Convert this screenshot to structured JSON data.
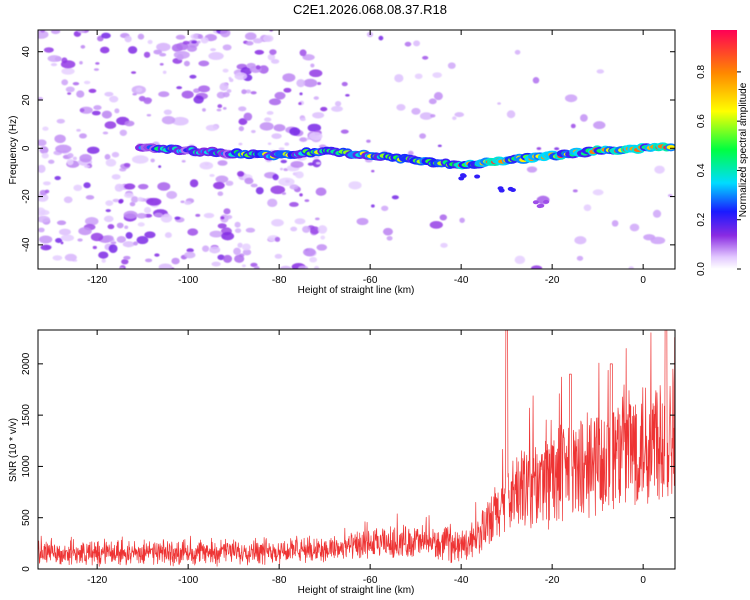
{
  "title": "C2E1.2026.068.08.37.R18",
  "chart_data": [
    {
      "type": "heatmap",
      "xlabel": "Height of straight line (km)",
      "ylabel": "Frequency (Hz)",
      "xlim": [
        -133,
        7
      ],
      "ylim": [
        -50,
        49
      ],
      "xticks": [
        -120,
        -100,
        -80,
        -60,
        -40,
        -20,
        0
      ],
      "yticks": [
        -40,
        -20,
        0,
        20,
        40
      ],
      "colorbar": {
        "label": "Normalized spectral amplitude",
        "range": [
          0,
          0.97
        ],
        "ticks": [
          0,
          0.2,
          0.4,
          0.6,
          0.8
        ]
      },
      "main_trace": [
        {
          "x": -110,
          "y": 0
        },
        {
          "x": -100,
          "y": -1
        },
        {
          "x": -90,
          "y": -2
        },
        {
          "x": -80,
          "y": -3
        },
        {
          "x": -70,
          "y": -1
        },
        {
          "x": -60,
          "y": -3
        },
        {
          "x": -50,
          "y": -5
        },
        {
          "x": -40,
          "y": -7
        },
        {
          "x": -30,
          "y": -5
        },
        {
          "x": -20,
          "y": -3
        },
        {
          "x": -10,
          "y": -1
        },
        {
          "x": 0,
          "y": 0
        },
        {
          "x": 7,
          "y": 1
        }
      ],
      "secondary_trace": [
        {
          "x": -38,
          "y": -12
        },
        {
          "x": -30,
          "y": -17
        },
        {
          "x": -22,
          "y": -23
        }
      ]
    },
    {
      "type": "line",
      "xlabel": "Height of straight line (km)",
      "ylabel": "SNR (10 * v/v)",
      "xlim": [
        -133,
        7
      ],
      "ylim": [
        0,
        2330
      ],
      "xticks": [
        -120,
        -100,
        -80,
        -60,
        -40,
        -20,
        0
      ],
      "yticks": [
        0,
        500,
        1000,
        1500,
        2000
      ],
      "series": [
        {
          "name": "SNR",
          "color": "#ee3333",
          "envelope": [
            {
              "x": -133,
              "y": 170
            },
            {
              "x": -120,
              "y": 170
            },
            {
              "x": -100,
              "y": 180
            },
            {
              "x": -80,
              "y": 200
            },
            {
              "x": -70,
              "y": 210
            },
            {
              "x": -60,
              "y": 260
            },
            {
              "x": -50,
              "y": 300
            },
            {
              "x": -45,
              "y": 270
            },
            {
              "x": -40,
              "y": 250
            },
            {
              "x": -35,
              "y": 420
            },
            {
              "x": -30,
              "y": 750
            },
            {
              "x": -25,
              "y": 900
            },
            {
              "x": -20,
              "y": 1000
            },
            {
              "x": -15,
              "y": 1050
            },
            {
              "x": -10,
              "y": 1150
            },
            {
              "x": -5,
              "y": 1300
            },
            {
              "x": 0,
              "y": 1350
            },
            {
              "x": 5,
              "y": 1500
            },
            {
              "x": 7,
              "y": 1600
            }
          ],
          "peaks": [
            {
              "x": -30,
              "y": 2330
            },
            {
              "x": -16,
              "y": 1900
            },
            {
              "x": -7,
              "y": 2000
            },
            {
              "x": 5,
              "y": 2330
            }
          ]
        }
      ]
    }
  ]
}
